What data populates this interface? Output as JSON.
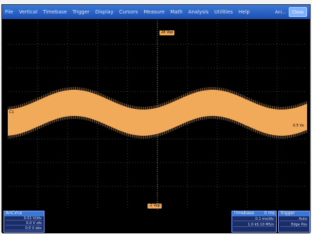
{
  "menu": {
    "items": [
      "File",
      "Vertical",
      "Timebase",
      "Trigger",
      "Display",
      "Cursors",
      "Measure",
      "Math",
      "Analysis",
      "Utilities",
      "Help"
    ],
    "app_label": "Ani...",
    "right_button": "Close"
  },
  "markers": {
    "top_level": "28 Vop",
    "bottom_level": "-2 Vop",
    "left_channel": "C1",
    "right_level": "0.5 Vo"
  },
  "panels": {
    "channel": {
      "title": "AnCVce",
      "rows": [
        "0.01 V/div",
        "0.0 V ofs",
        "0.0 V abs"
      ]
    },
    "timebase": {
      "title": "Timebase",
      "value": "0 ms",
      "rows": [
        "0.1 ms/div",
        "1.0 kS  10 MS/s"
      ]
    },
    "trigger": {
      "title": "Trigger",
      "rows": [
        "Auto",
        "Edge Pos"
      ]
    }
  },
  "colors": {
    "trace": "#f0aa5a",
    "menubar": "#2a5fc4",
    "grid": "#3b3b3b"
  }
}
